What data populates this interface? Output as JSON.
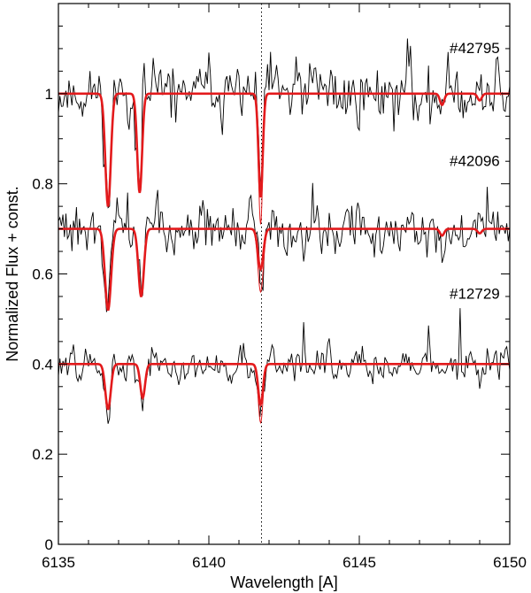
{
  "chart_data": {
    "type": "line",
    "title": "",
    "xlabel": "Wavelength [A]",
    "ylabel": "Normalized Flux + const.",
    "xlim": [
      6135,
      6150
    ],
    "ylim": [
      0,
      1.2
    ],
    "x_ticks": [
      6135,
      6140,
      6145,
      6150
    ],
    "x_tick_labels": [
      "6135",
      "6140",
      "6145",
      "6150"
    ],
    "y_ticks": [
      0,
      0.2,
      0.4,
      0.6,
      0.8,
      1.0
    ],
    "y_tick_labels": [
      "0",
      "0.2",
      "0.4",
      "0.6",
      "0.8",
      "1"
    ],
    "reference_line": {
      "x": 6141.75,
      "style": "dotted",
      "color": "#000000"
    },
    "colors": {
      "observed": "#000000",
      "model": "#e31a1c"
    },
    "series": [
      {
        "label": "#42795",
        "offset": 1.0,
        "label_pos": [
          6148.0,
          1.09
        ],
        "model_lines": [
          {
            "center": 6136.65,
            "depth": 0.25,
            "sigma": 0.09
          },
          {
            "center": 6137.7,
            "depth": 0.22,
            "sigma": 0.08
          },
          {
            "center": 6141.72,
            "depth": 0.23,
            "sigma": 0.07,
            "alt_depth": 0.29
          },
          {
            "center": 6147.75,
            "depth": 0.025,
            "sigma": 0.07
          },
          {
            "center": 6149.0,
            "depth": 0.015,
            "sigma": 0.07
          }
        ],
        "noise": 0.09,
        "seed": 11
      },
      {
        "label": "#42096",
        "offset": 0.7,
        "label_pos": [
          6148.0,
          0.84
        ],
        "model_lines": [
          {
            "center": 6136.65,
            "depth": 0.18,
            "sigma": 0.1
          },
          {
            "center": 6137.75,
            "depth": 0.15,
            "sigma": 0.09
          },
          {
            "center": 6141.72,
            "depth": 0.09,
            "sigma": 0.09,
            "alt_depth": 0.14
          },
          {
            "center": 6147.75,
            "depth": 0.015,
            "sigma": 0.07
          },
          {
            "center": 6149.0,
            "depth": 0.01,
            "sigma": 0.07
          }
        ],
        "noise": 0.07,
        "seed": 29
      },
      {
        "label": "#12729",
        "offset": 0.4,
        "label_pos": [
          6148.0,
          0.545
        ],
        "model_lines": [
          {
            "center": 6136.65,
            "depth": 0.1,
            "sigma": 0.09
          },
          {
            "center": 6137.8,
            "depth": 0.075,
            "sigma": 0.08
          },
          {
            "center": 6141.72,
            "depth": 0.09,
            "sigma": 0.08,
            "alt_depth": 0.13
          }
        ],
        "noise": 0.05,
        "seed": 47
      }
    ]
  }
}
